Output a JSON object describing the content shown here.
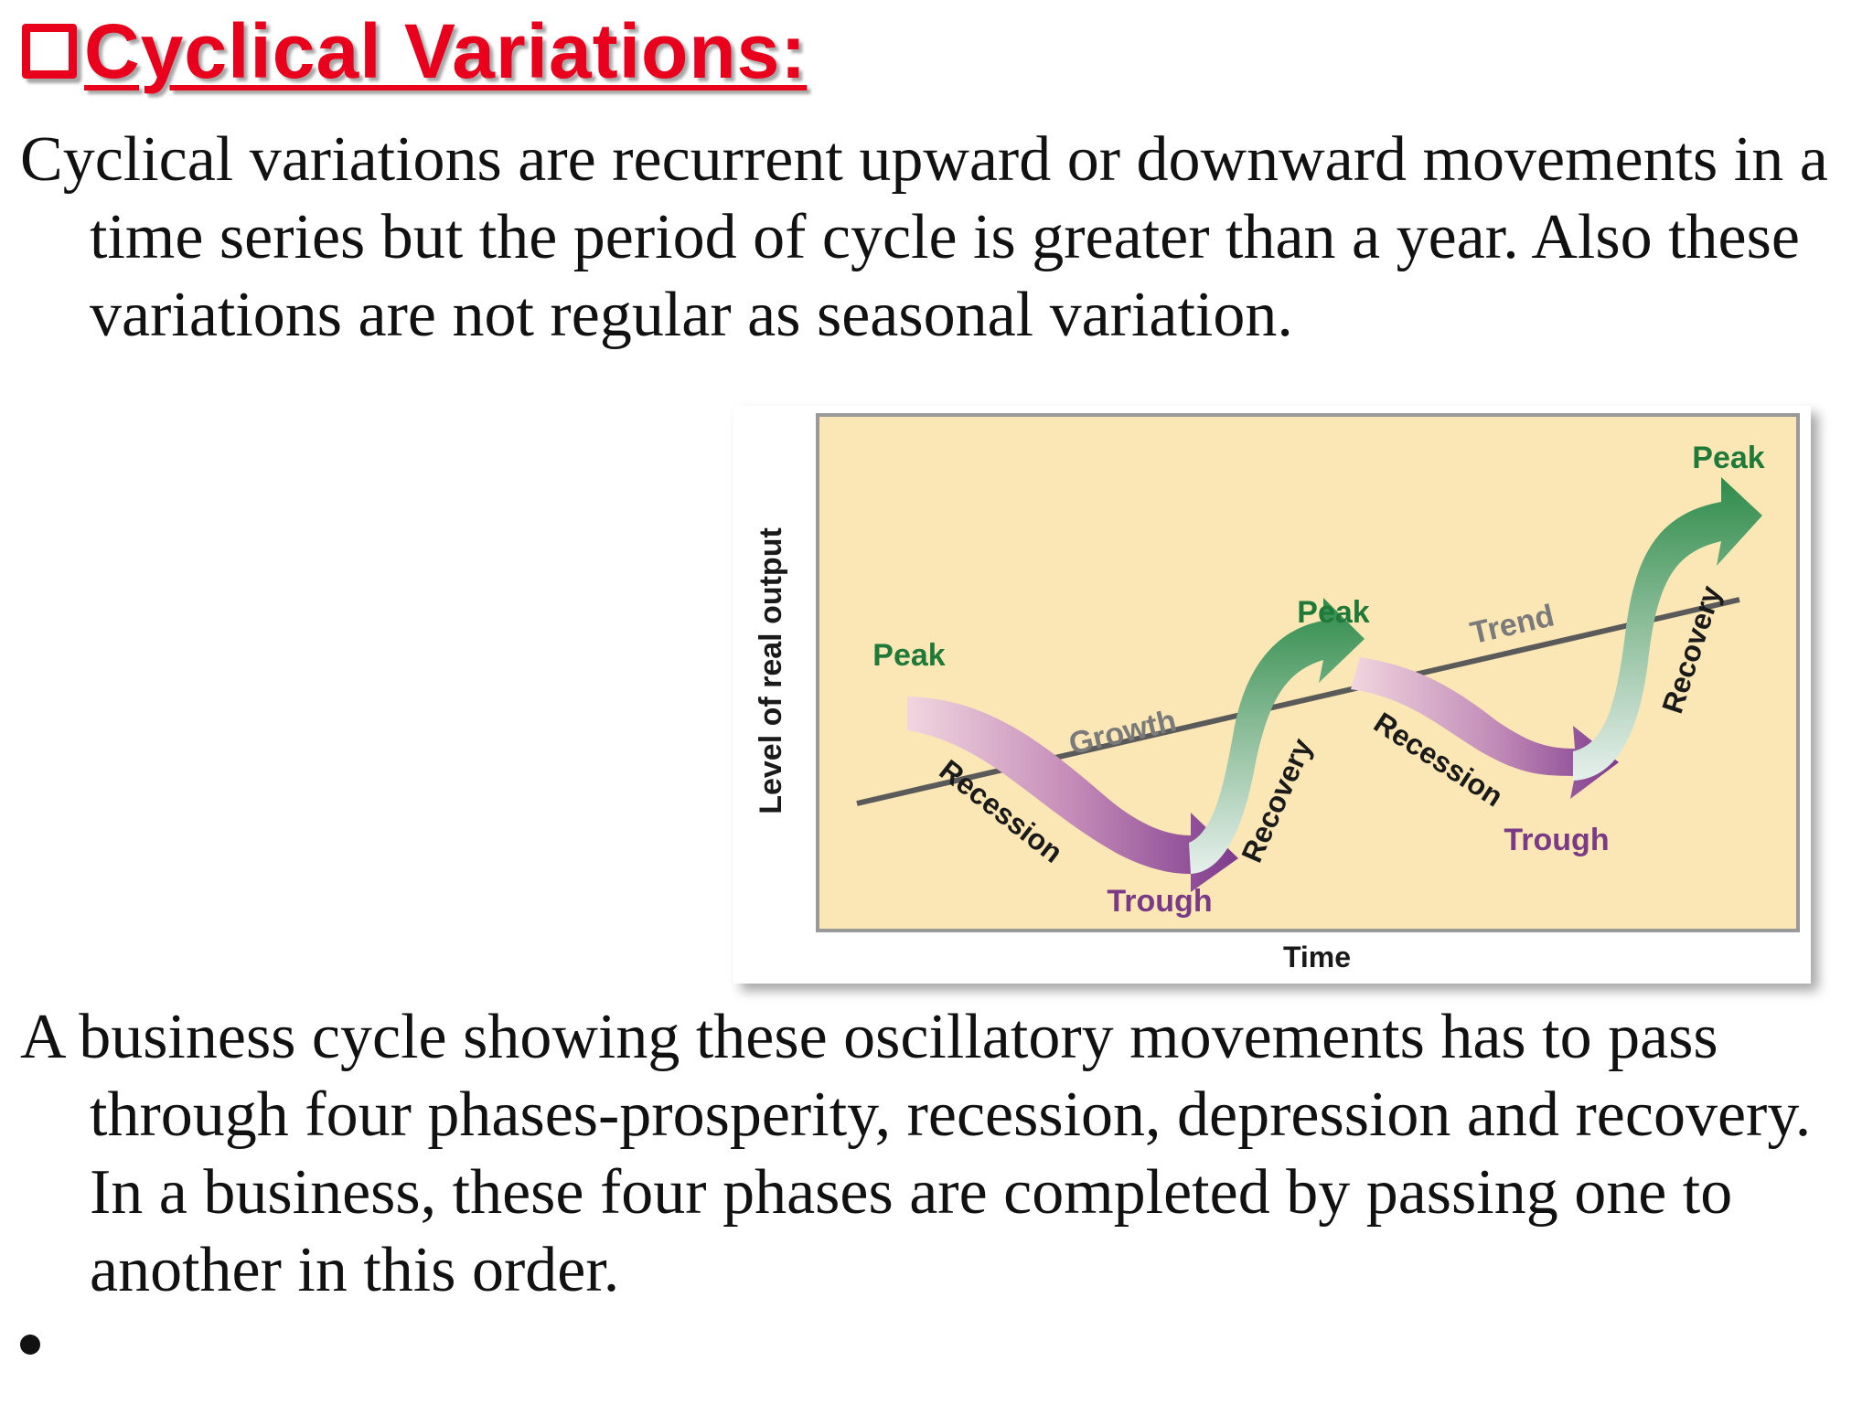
{
  "slide": {
    "title": "Cyclical  Variations:",
    "paragraph_1": "Cyclical variations are recurrent upward or downward movements in a time series but the period of cycle is greater than a  year. Also these variations are not regular as seasonal variation.",
    "paragraph_2": "A business cycle showing these oscillatory movements has to pass through four phases-prosperity, recession, depression and recovery. In a business, these four phases are completed by passing one to another  in this order."
  },
  "figure": {
    "y_axis_label": "Level of real output",
    "x_axis_label": "Time",
    "trend_labels": [
      "Growth",
      "Trend"
    ],
    "peak_labels": [
      "Peak",
      "Peak",
      "Peak"
    ],
    "trough_labels": [
      "Trough",
      "Trough"
    ],
    "recession_labels": [
      "Recession",
      "Recession"
    ],
    "recovery_labels": [
      "Recovery",
      "Recovery"
    ],
    "colors": {
      "plot_background": "#fbe7b5",
      "peak_text": "#1f7a3a",
      "trough_text": "#7a3a85",
      "trend_text": "#7a7a7a",
      "recession_arrow": "#8a3d93",
      "recovery_arrow": "#2e8b4a",
      "title_red": "#e8001c"
    }
  }
}
